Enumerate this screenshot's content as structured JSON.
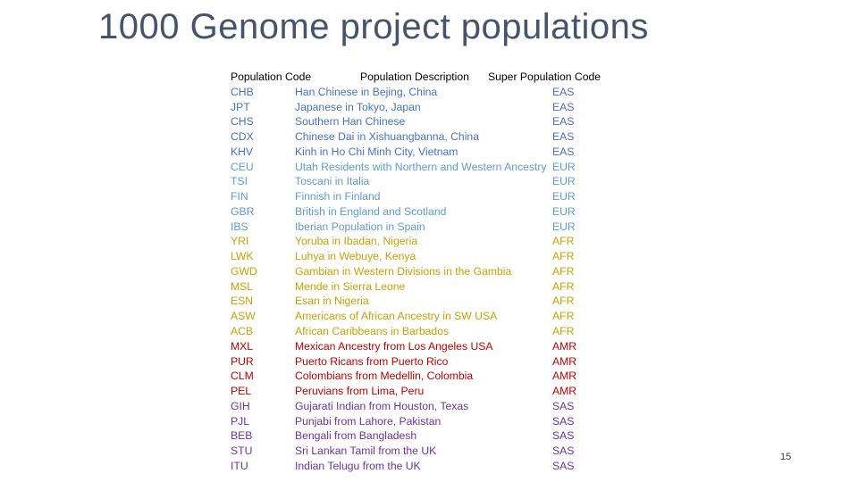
{
  "title": "1000 Genome project populations",
  "page_number": "15",
  "header": {
    "code": "Population Code",
    "description": "Population Description",
    "super": "Super Population Code"
  },
  "super_colors": {
    "EAS": "#4472c4",
    "EUR": "#5b9bd5",
    "AFR": "#c9a000",
    "AMR": "#c00000",
    "SAS": "#7030a0"
  },
  "rows": [
    {
      "code": "CHB",
      "description": "Han Chinese in Bejing, China",
      "super": "EAS"
    },
    {
      "code": "JPT",
      "description": "Japanese in Tokyo, Japan",
      "super": "EAS"
    },
    {
      "code": "CHS",
      "description": "Southern Han Chinese",
      "super": "EAS"
    },
    {
      "code": "CDX",
      "description": "Chinese Dai in Xishuangbanna, China",
      "super": "EAS"
    },
    {
      "code": "KHV",
      "description": "Kinh in Ho Chi Minh City, Vietnam",
      "super": "EAS"
    },
    {
      "code": "CEU",
      "description": "Utah Residents with Northern and Western Ancestry",
      "super": "EUR"
    },
    {
      "code": "TSI",
      "description": "Toscani in Italia",
      "super": "EUR"
    },
    {
      "code": "FIN",
      "description": "Finnish in Finland",
      "super": "EUR"
    },
    {
      "code": "GBR",
      "description": "British in England and Scotland",
      "super": "EUR"
    },
    {
      "code": "IBS",
      "description": "Iberian Population in Spain",
      "super": "EUR"
    },
    {
      "code": "YRI",
      "description": "Yoruba in Ibadan, Nigeria",
      "super": "AFR"
    },
    {
      "code": "LWK",
      "description": "Luhya in Webuye, Kenya",
      "super": "AFR"
    },
    {
      "code": "GWD",
      "description": "Gambian in Western Divisions in the Gambia",
      "super": "AFR"
    },
    {
      "code": "MSL",
      "description": "Mende in Sierra Leone",
      "super": "AFR"
    },
    {
      "code": "ESN",
      "description": "Esan in Nigeria",
      "super": "AFR"
    },
    {
      "code": "ASW",
      "description": "Americans of African Ancestry in SW USA",
      "super": "AFR"
    },
    {
      "code": "ACB",
      "description": "African Caribbeans in Barbados",
      "super": "AFR"
    },
    {
      "code": "MXL",
      "description": "Mexican Ancestry from Los Angeles USA",
      "super": "AMR"
    },
    {
      "code": "PUR",
      "description": "Puerto Ricans from Puerto Rico",
      "super": "AMR"
    },
    {
      "code": "CLM",
      "description": "Colombians from Medellin, Colombia",
      "super": "AMR"
    },
    {
      "code": "PEL",
      "description": "Peruvians from Lima, Peru",
      "super": "AMR"
    },
    {
      "code": "GIH",
      "description": "Gujarati Indian from Houston, Texas",
      "super": "SAS"
    },
    {
      "code": "PJL",
      "description": "Punjabi from Lahore, Pakistan",
      "super": "SAS"
    },
    {
      "code": "BEB",
      "description": "Bengali from Bangladesh",
      "super": "SAS"
    },
    {
      "code": "STU",
      "description": "Sri Lankan Tamil from the UK",
      "super": "SAS"
    },
    {
      "code": "ITU",
      "description": "Indian Telugu from the UK",
      "super": "SAS"
    }
  ]
}
